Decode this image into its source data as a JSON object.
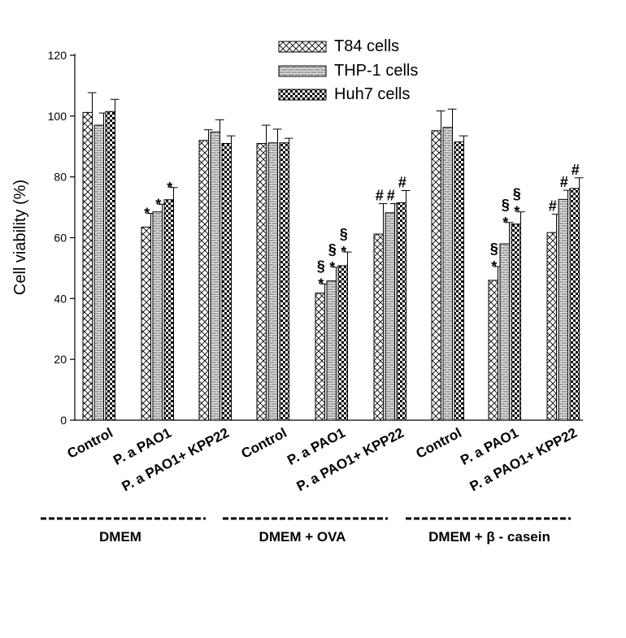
{
  "chart_data": {
    "type": "bar",
    "title": "",
    "xlabel": "",
    "ylabel": "Cell viability (%)",
    "ylim": [
      0,
      120
    ],
    "yticks": [
      0,
      20,
      40,
      60,
      80,
      100,
      120
    ],
    "grid": false,
    "legend_position": "top-right",
    "categories": [
      "Control",
      "P. a PAO1",
      "P. a PAO1+ KPP22",
      "Control",
      "P. a PAO1",
      "P. a PAO1+ KPP22",
      "Control",
      "P. a PAO1",
      "P. a PAO1+ KPP22"
    ],
    "groups": [
      {
        "label": "DMEM",
        "categories": [
          0,
          1,
          2
        ]
      },
      {
        "label": "DMEM + OVA",
        "categories": [
          3,
          4,
          5
        ]
      },
      {
        "label": "DMEM + β - casein",
        "categories": [
          6,
          7,
          8
        ]
      }
    ],
    "series": [
      {
        "name": "T84 cells",
        "pattern": "crosshatch",
        "values": [
          101.2,
          63.5,
          92.0,
          91.0,
          41.8,
          61.2,
          95.2,
          46.0,
          61.7
        ],
        "errors": [
          6.5,
          4.5,
          3.5,
          6.0,
          3.0,
          10.0,
          6.5,
          4.5,
          6.0
        ],
        "annotations": [
          "",
          "*",
          "",
          "",
          "§\n*",
          "#",
          "",
          "§\n*",
          "#"
        ]
      },
      {
        "name": "THP-1 cells",
        "pattern": "gray-brick",
        "values": [
          97.0,
          68.5,
          94.8,
          91.2,
          45.8,
          68.2,
          96.3,
          58.0,
          72.6
        ],
        "errors": [
          4.0,
          2.5,
          4.0,
          4.5,
          4.5,
          3.0,
          6.0,
          7.0,
          3.0
        ],
        "annotations": [
          "",
          "*",
          "",
          "",
          "§\n*",
          "#",
          "",
          "§\n*",
          "#"
        ]
      },
      {
        "name": "Huh7 cells",
        "pattern": "checker",
        "values": [
          101.5,
          72.5,
          91.0,
          91.2,
          50.8,
          71.5,
          91.5,
          64.5,
          76.2
        ],
        "errors": [
          4.0,
          4.0,
          2.5,
          1.5,
          4.5,
          4.0,
          2.0,
          4.0,
          3.5
        ],
        "annotations": [
          "",
          "*",
          "",
          "",
          "§\n*",
          "#",
          "",
          "§\n*",
          "#"
        ]
      }
    ]
  }
}
